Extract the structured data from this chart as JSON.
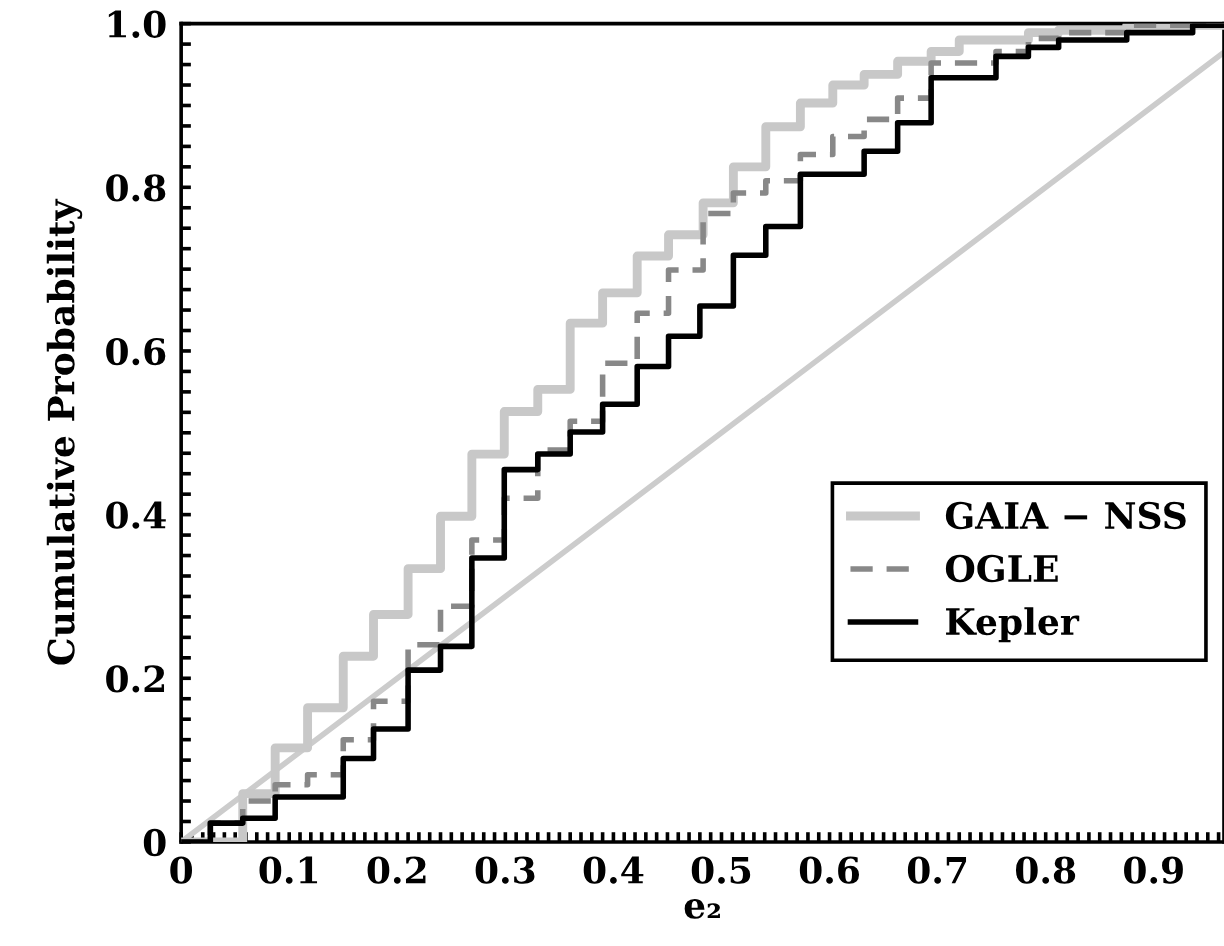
{
  "chart_data": {
    "type": "step",
    "xlabel": "e₂",
    "ylabel": "Cumulative Probability",
    "xlim": [
      0,
      0.965
    ],
    "ylim": [
      0,
      1.0
    ],
    "xticks": [
      0,
      0.1,
      0.2,
      0.3,
      0.4,
      0.5,
      0.6,
      0.7,
      0.8,
      0.9,
      {
        "value": 0.01,
        "label": null
      },
      {
        "value": 0.02,
        "label": null
      },
      {
        "value": 0.03,
        "label": null
      },
      {
        "value": 0.04,
        "label": null
      },
      {
        "value": 0.05,
        "label": null
      },
      {
        "value": 0.06,
        "label": null
      },
      {
        "value": 0.07,
        "label": null
      },
      {
        "value": 0.08,
        "label": null
      },
      {
        "value": 0.09,
        "label": null
      },
      {
        "value": 0.11,
        "label": null
      },
      {
        "value": 0.12,
        "label": null
      },
      {
        "value": 0.13,
        "label": null
      },
      {
        "value": 0.14,
        "label": null
      },
      {
        "value": 0.15,
        "label": null
      },
      {
        "value": 0.16,
        "label": null
      },
      {
        "value": 0.17,
        "label": null
      },
      {
        "value": 0.18,
        "label": null
      },
      {
        "value": 0.19,
        "label": null
      },
      {
        "value": 0.21,
        "label": null
      },
      {
        "value": 0.22,
        "label": null
      },
      {
        "value": 0.23,
        "label": null
      },
      {
        "value": 0.24,
        "label": null
      },
      {
        "value": 0.25,
        "label": null
      },
      {
        "value": 0.26,
        "label": null
      },
      {
        "value": 0.27,
        "label": null
      },
      {
        "value": 0.28,
        "label": null
      },
      {
        "value": 0.29,
        "label": null
      },
      {
        "value": 0.31,
        "label": null
      },
      {
        "value": 0.32,
        "label": null
      },
      {
        "value": 0.33,
        "label": null
      },
      {
        "value": 0.34,
        "label": null
      },
      {
        "value": 0.35,
        "label": null
      },
      {
        "value": 0.36,
        "label": null
      },
      {
        "value": 0.37,
        "label": null
      },
      {
        "value": 0.38,
        "label": null
      },
      {
        "value": 0.39,
        "label": null
      },
      {
        "value": 0.41,
        "label": null
      },
      {
        "value": 0.42,
        "label": null
      },
      {
        "value": 0.43,
        "label": null
      },
      {
        "value": 0.44,
        "label": null
      },
      {
        "value": 0.45,
        "label": null
      },
      {
        "value": 0.46,
        "label": null
      },
      {
        "value": 0.47,
        "label": null
      },
      {
        "value": 0.48,
        "label": null
      },
      {
        "value": 0.49,
        "label": null
      },
      {
        "value": 0.51,
        "label": null
      },
      {
        "value": 0.52,
        "label": null
      },
      {
        "value": 0.53,
        "label": null
      },
      {
        "value": 0.54,
        "label": null
      },
      {
        "value": 0.55,
        "label": null
      },
      {
        "value": 0.56,
        "label": null
      },
      {
        "value": 0.57,
        "label": null
      },
      {
        "value": 0.58,
        "label": null
      },
      {
        "value": 0.59,
        "label": null
      },
      {
        "value": 0.61,
        "label": null
      },
      {
        "value": 0.62,
        "label": null
      },
      {
        "value": 0.63,
        "label": null
      },
      {
        "value": 0.64,
        "label": null
      },
      {
        "value": 0.65,
        "label": null
      },
      {
        "value": 0.66,
        "label": null
      },
      {
        "value": 0.67,
        "label": null
      },
      {
        "value": 0.68,
        "label": null
      },
      {
        "value": 0.69,
        "label": null
      },
      {
        "value": 0.71,
        "label": null
      },
      {
        "value": 0.72,
        "label": null
      },
      {
        "value": 0.73,
        "label": null
      },
      {
        "value": 0.74,
        "label": null
      },
      {
        "value": 0.75,
        "label": null
      },
      {
        "value": 0.76,
        "label": null
      },
      {
        "value": 0.77,
        "label": null
      },
      {
        "value": 0.78,
        "label": null
      },
      {
        "value": 0.79,
        "label": null
      },
      {
        "value": 0.81,
        "label": null
      },
      {
        "value": 0.82,
        "label": null
      },
      {
        "value": 0.83,
        "label": null
      },
      {
        "value": 0.84,
        "label": null
      },
      {
        "value": 0.85,
        "label": null
      },
      {
        "value": 0.86,
        "label": null
      },
      {
        "value": 0.87,
        "label": null
      },
      {
        "value": 0.88,
        "label": null
      },
      {
        "value": 0.89,
        "label": null
      },
      {
        "value": 0.91,
        "label": null
      },
      {
        "value": 0.92,
        "label": null
      },
      {
        "value": 0.93,
        "label": null
      },
      {
        "value": 0.94,
        "label": null
      },
      {
        "value": 0.95,
        "label": null
      },
      {
        "value": 0.96,
        "label": null
      }
    ],
    "yticks": [
      0,
      {
        "value": 0.2,
        "label": "0.2"
      },
      {
        "value": 0.4,
        "label": "0.4"
      },
      {
        "value": 0.6,
        "label": "0.6"
      },
      {
        "value": 0.8,
        "label": "0.8"
      },
      {
        "value": 1.0,
        "label": "1.0"
      },
      {
        "value": 0.025,
        "label": null
      },
      {
        "value": 0.05,
        "label": null
      },
      {
        "value": 0.075,
        "label": null
      },
      {
        "value": 0.1,
        "label": null
      },
      {
        "value": 0.125,
        "label": null
      },
      {
        "value": 0.15,
        "label": null
      },
      {
        "value": 0.175,
        "label": null
      },
      {
        "value": 0.225,
        "label": null
      },
      {
        "value": 0.25,
        "label": null
      },
      {
        "value": 0.275,
        "label": null
      },
      {
        "value": 0.3,
        "label": null
      },
      {
        "value": 0.325,
        "label": null
      },
      {
        "value": 0.35,
        "label": null
      },
      {
        "value": 0.375,
        "label": null
      },
      {
        "value": 0.425,
        "label": null
      },
      {
        "value": 0.45,
        "label": null
      },
      {
        "value": 0.475,
        "label": null
      },
      {
        "value": 0.5,
        "label": null
      },
      {
        "value": 0.525,
        "label": null
      },
      {
        "value": 0.55,
        "label": null
      },
      {
        "value": 0.575,
        "label": null
      },
      {
        "value": 0.625,
        "label": null
      },
      {
        "value": 0.65,
        "label": null
      },
      {
        "value": 0.675,
        "label": null
      },
      {
        "value": 0.7,
        "label": null
      },
      {
        "value": 0.725,
        "label": null
      },
      {
        "value": 0.75,
        "label": null
      },
      {
        "value": 0.775,
        "label": null
      },
      {
        "value": 0.825,
        "label": null
      },
      {
        "value": 0.85,
        "label": null
      },
      {
        "value": 0.875,
        "label": null
      },
      {
        "value": 0.9,
        "label": null
      },
      {
        "value": 0.925,
        "label": null
      },
      {
        "value": 0.95,
        "label": null
      },
      {
        "value": 0.975,
        "label": null
      }
    ],
    "grid": false,
    "legend": "bottom right",
    "marker": "none",
    "series": [
      {
        "type": "line",
        "color": "#cccccc",
        "line_style": "solid",
        "x": [
          0,
          0.965
        ],
        "values": [
          0,
          0.965
        ]
      },
      {
        "name": "GAIA − NSS",
        "color": "#c8c8c8",
        "line_style": "solid",
        "x": [
          0,
          0.057,
          0.087,
          0.117,
          0.15,
          0.178,
          0.21,
          0.24,
          0.269,
          0.299,
          0.33,
          0.36,
          0.39,
          0.422,
          0.451,
          0.483,
          0.511,
          0.541,
          0.573,
          0.603,
          0.632,
          0.663,
          0.694,
          0.72,
          0.784,
          0.812,
          0.875,
          0.965
        ],
        "values": [
          0,
          0.059,
          0.115,
          0.164,
          0.227,
          0.278,
          0.334,
          0.398,
          0.474,
          0.526,
          0.553,
          0.634,
          0.671,
          0.716,
          0.742,
          0.781,
          0.825,
          0.874,
          0.903,
          0.925,
          0.938,
          0.954,
          0.966,
          0.98,
          0.989,
          0.992,
          0.998,
          0.998
        ]
      },
      {
        "name": "OGLE",
        "color": "#888888",
        "line_style": "dashed",
        "x": [
          0,
          0.027,
          0.057,
          0.087,
          0.117,
          0.15,
          0.178,
          0.21,
          0.24,
          0.269,
          0.299,
          0.33,
          0.36,
          0.39,
          0.422,
          0.451,
          0.483,
          0.511,
          0.541,
          0.573,
          0.603,
          0.632,
          0.663,
          0.694,
          0.754,
          0.784,
          0.812,
          0.875,
          0.965
        ],
        "values": [
          0,
          0.023,
          0.05,
          0.07,
          0.082,
          0.125,
          0.172,
          0.241,
          0.288,
          0.369,
          0.42,
          0.479,
          0.514,
          0.585,
          0.646,
          0.699,
          0.768,
          0.793,
          0.808,
          0.84,
          0.862,
          0.883,
          0.909,
          0.952,
          0.966,
          0.982,
          0.989,
          0.998,
          0.998
        ]
      },
      {
        "name": "Kepler",
        "color": "#000000",
        "line_style": "solid",
        "x": [
          0,
          0.027,
          0.057,
          0.087,
          0.15,
          0.178,
          0.21,
          0.24,
          0.269,
          0.299,
          0.33,
          0.36,
          0.39,
          0.422,
          0.451,
          0.48,
          0.511,
          0.541,
          0.573,
          0.632,
          0.663,
          0.694,
          0.754,
          0.784,
          0.812,
          0.875,
          0.936,
          0.965
        ],
        "values": [
          0,
          0.023,
          0.029,
          0.055,
          0.102,
          0.138,
          0.21,
          0.239,
          0.347,
          0.455,
          0.474,
          0.501,
          0.535,
          0.581,
          0.618,
          0.655,
          0.717,
          0.752,
          0.816,
          0.844,
          0.879,
          0.934,
          0.96,
          0.971,
          0.98,
          0.989,
          0.998,
          0.998
        ]
      }
    ]
  }
}
